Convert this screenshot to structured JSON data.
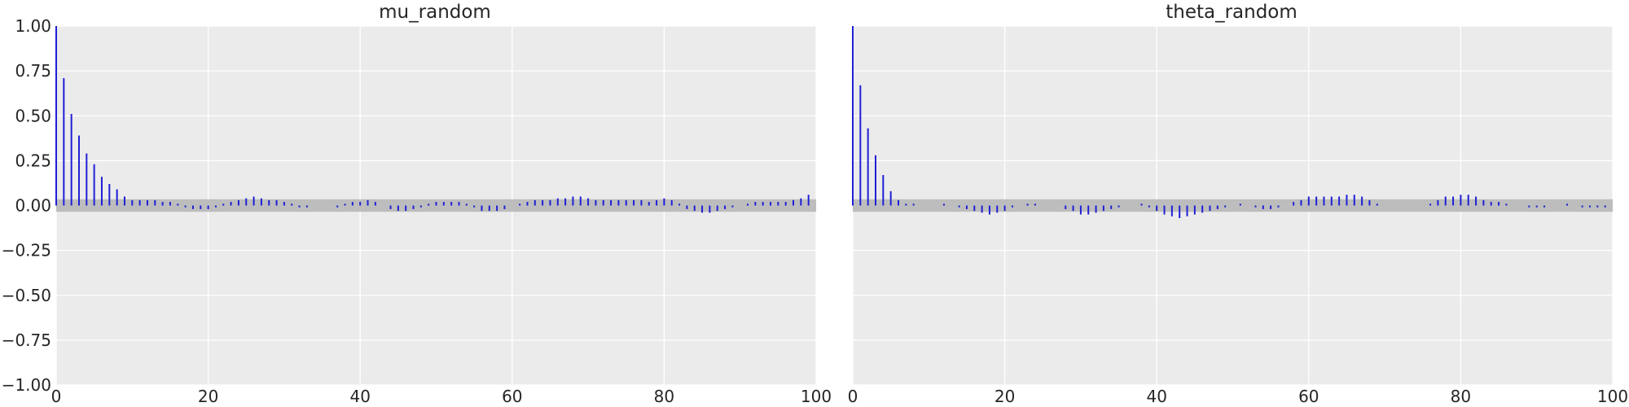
{
  "chart_data": [
    {
      "type": "bar",
      "title": "mu_random",
      "xlabel": "",
      "ylabel": "",
      "xlim": [
        0,
        100
      ],
      "ylim": [
        -1.0,
        1.0
      ],
      "x_ticks": [
        "0",
        "20",
        "40",
        "60",
        "80",
        "100"
      ],
      "y_ticks": [
        "1.00",
        "0.75",
        "0.50",
        "0.25",
        "0.00",
        "−0.25",
        "−0.50",
        "−0.75",
        "−1.00"
      ],
      "grid": true,
      "confidence_band": [
        -0.035,
        0.035
      ],
      "lags": [
        0,
        1,
        2,
        3,
        4,
        5,
        6,
        7,
        8,
        9,
        10,
        11,
        12,
        13,
        14,
        15,
        16,
        17,
        18,
        19,
        20,
        21,
        22,
        23,
        24,
        25,
        26,
        27,
        28,
        29,
        30,
        31,
        32,
        33,
        34,
        35,
        36,
        37,
        38,
        39,
        40,
        41,
        42,
        43,
        44,
        45,
        46,
        47,
        48,
        49,
        50,
        51,
        52,
        53,
        54,
        55,
        56,
        57,
        58,
        59,
        60,
        61,
        62,
        63,
        64,
        65,
        66,
        67,
        68,
        69,
        70,
        71,
        72,
        73,
        74,
        75,
        76,
        77,
        78,
        79,
        80,
        81,
        82,
        83,
        84,
        85,
        86,
        87,
        88,
        89,
        90,
        91,
        92,
        93,
        94,
        95,
        96,
        97,
        98,
        99
      ],
      "values": [
        1.0,
        0.71,
        0.51,
        0.39,
        0.29,
        0.23,
        0.16,
        0.12,
        0.09,
        0.05,
        0.03,
        0.03,
        0.03,
        0.03,
        0.02,
        0.02,
        0.01,
        -0.01,
        -0.02,
        -0.02,
        -0.02,
        -0.01,
        0.01,
        0.02,
        0.03,
        0.04,
        0.05,
        0.04,
        0.03,
        0.03,
        0.02,
        0.01,
        -0.01,
        -0.01,
        0.0,
        0.0,
        0.0,
        -0.01,
        0.01,
        0.02,
        0.02,
        0.03,
        0.02,
        0.0,
        -0.02,
        -0.03,
        -0.03,
        -0.02,
        -0.01,
        0.01,
        0.02,
        0.02,
        0.02,
        0.02,
        0.01,
        -0.01,
        -0.03,
        -0.03,
        -0.03,
        -0.02,
        0.0,
        0.01,
        0.02,
        0.03,
        0.03,
        0.03,
        0.04,
        0.04,
        0.05,
        0.05,
        0.04,
        0.03,
        0.03,
        0.03,
        0.03,
        0.03,
        0.03,
        0.03,
        0.02,
        0.03,
        0.04,
        0.03,
        0.01,
        -0.02,
        -0.03,
        -0.04,
        -0.04,
        -0.03,
        -0.02,
        -0.01,
        0.0,
        0.01,
        0.02,
        0.02,
        0.02,
        0.02,
        0.02,
        0.03,
        0.04,
        0.06
      ]
    },
    {
      "type": "bar",
      "title": "theta_random",
      "xlabel": "",
      "ylabel": "",
      "xlim": [
        0,
        100
      ],
      "ylim": [
        -1.0,
        1.0
      ],
      "x_ticks": [
        "0",
        "20",
        "40",
        "60",
        "80",
        "100"
      ],
      "y_ticks": [
        "1.00",
        "0.75",
        "0.50",
        "0.25",
        "0.00",
        "−0.25",
        "−0.50",
        "−0.75",
        "−1.00"
      ],
      "grid": true,
      "confidence_band": [
        -0.035,
        0.035
      ],
      "lags": [
        0,
        1,
        2,
        3,
        4,
        5,
        6,
        7,
        8,
        9,
        10,
        11,
        12,
        13,
        14,
        15,
        16,
        17,
        18,
        19,
        20,
        21,
        22,
        23,
        24,
        25,
        26,
        27,
        28,
        29,
        30,
        31,
        32,
        33,
        34,
        35,
        36,
        37,
        38,
        39,
        40,
        41,
        42,
        43,
        44,
        45,
        46,
        47,
        48,
        49,
        50,
        51,
        52,
        53,
        54,
        55,
        56,
        57,
        58,
        59,
        60,
        61,
        62,
        63,
        64,
        65,
        66,
        67,
        68,
        69,
        70,
        71,
        72,
        73,
        74,
        75,
        76,
        77,
        78,
        79,
        80,
        81,
        82,
        83,
        84,
        85,
        86,
        87,
        88,
        89,
        90,
        91,
        92,
        93,
        94,
        95,
        96,
        97,
        98,
        99
      ],
      "values": [
        1.0,
        0.67,
        0.43,
        0.28,
        0.17,
        0.08,
        0.03,
        0.01,
        0.01,
        0.0,
        0.0,
        0.0,
        0.01,
        0.0,
        -0.01,
        -0.02,
        -0.03,
        -0.04,
        -0.05,
        -0.04,
        -0.03,
        -0.01,
        0.0,
        0.01,
        0.01,
        0.0,
        0.0,
        0.0,
        -0.02,
        -0.03,
        -0.05,
        -0.05,
        -0.04,
        -0.03,
        -0.02,
        -0.01,
        0.0,
        0.0,
        0.01,
        -0.01,
        -0.03,
        -0.05,
        -0.06,
        -0.07,
        -0.06,
        -0.05,
        -0.04,
        -0.03,
        -0.02,
        -0.01,
        0.0,
        0.01,
        0.0,
        -0.01,
        -0.02,
        -0.02,
        -0.01,
        0.0,
        0.02,
        0.03,
        0.05,
        0.05,
        0.05,
        0.05,
        0.05,
        0.06,
        0.06,
        0.05,
        0.03,
        0.01,
        0.0,
        0.0,
        0.0,
        0.0,
        0.0,
        0.0,
        0.01,
        0.03,
        0.05,
        0.05,
        0.06,
        0.06,
        0.05,
        0.03,
        0.02,
        0.02,
        0.01,
        0.0,
        0.0,
        -0.01,
        -0.01,
        -0.01,
        0.0,
        0.0,
        0.01,
        0.0,
        -0.01,
        -0.01,
        -0.01,
        -0.01
      ]
    }
  ]
}
